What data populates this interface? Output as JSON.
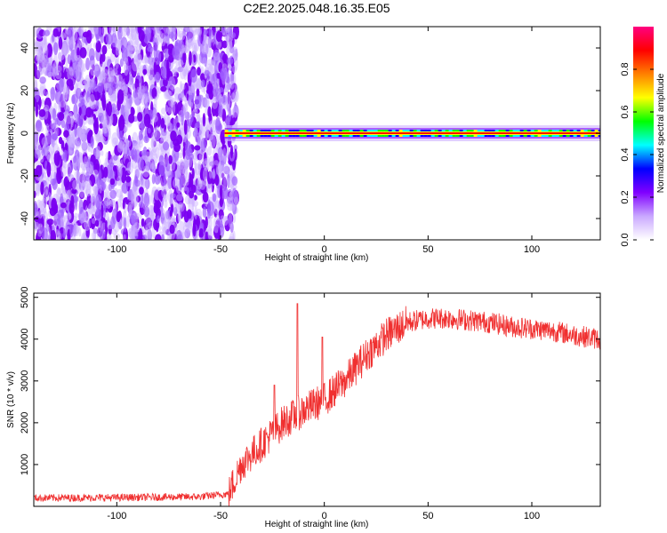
{
  "title": "C2E2.2025.048.16.35.E05",
  "chart_data": [
    {
      "type": "heatmap",
      "xlabel": "Height of straight line (km)",
      "ylabel": "Frequency (Hz)",
      "xlim": [
        -140,
        133
      ],
      "ylim": [
        -50,
        50
      ],
      "x_ticks": [
        -100,
        -50,
        0,
        50,
        100
      ],
      "x_tick_labels": [
        "-100",
        "-50",
        "0",
        "50",
        "100"
      ],
      "y_ticks": [
        -40,
        -20,
        0,
        20,
        40
      ],
      "y_tick_labels": [
        "-40",
        "-20",
        "0",
        "20",
        "40"
      ],
      "noise_region_x": [
        -140,
        -45
      ],
      "signal_band_frequency": 0,
      "signal_band_x": [
        -48,
        133
      ],
      "colorbar": {
        "label": "Normalized spectral amplitude",
        "range": [
          0,
          1
        ],
        "ticks": [
          0.0,
          0.2,
          0.4,
          0.6,
          0.8
        ],
        "tick_labels": [
          "0.0",
          "0.2",
          "0.4",
          "0.6",
          "0.8"
        ],
        "colormap": [
          "#ffffff",
          "#c9a8ff",
          "#8000ff",
          "#0000ff",
          "#00ffff",
          "#00ff00",
          "#ffff00",
          "#ff8000",
          "#ff0000",
          "#ff0080"
        ]
      }
    },
    {
      "type": "line",
      "xlabel": "Height of straight line (km)",
      "ylabel": "SNR (10 * v/v)",
      "xlim": [
        -140,
        133
      ],
      "ylim": [
        0,
        5100
      ],
      "x_ticks": [
        -100,
        -50,
        0,
        50,
        100
      ],
      "x_tick_labels": [
        "-100",
        "-50",
        "0",
        "50",
        "100"
      ],
      "y_ticks": [
        1000,
        2000,
        3000,
        4000,
        5000
      ],
      "y_tick_labels": [
        "1000",
        "2000",
        "3000",
        "4000",
        "5000"
      ],
      "line_color": "#f03030",
      "trend": {
        "x": [
          -140,
          -100,
          -60,
          -46,
          -40,
          -30,
          -20,
          -10,
          0,
          10,
          20,
          30,
          40,
          50,
          60,
          70,
          80,
          90,
          100,
          110,
          120,
          133
        ],
        "y": [
          200,
          210,
          230,
          300,
          1000,
          1500,
          2000,
          2300,
          2550,
          3000,
          3600,
          4100,
          4400,
          4500,
          4500,
          4450,
          4400,
          4300,
          4250,
          4200,
          4100,
          4000
        ]
      },
      "spikes": [
        {
          "x": -13,
          "y": 4850
        },
        {
          "x": -1,
          "y": 4050
        },
        {
          "x": -24,
          "y": 2900
        }
      ]
    }
  ]
}
